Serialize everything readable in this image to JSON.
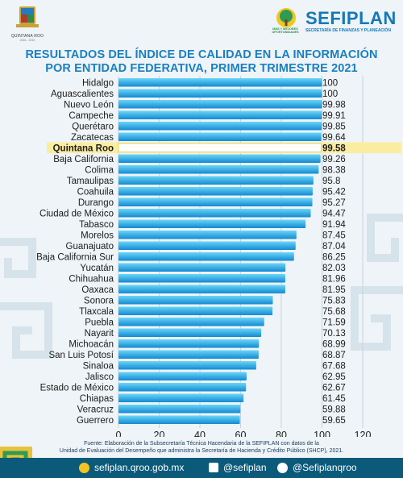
{
  "header": {
    "left_logo_name": "QUINTANA ROO",
    "left_logo_date": "2016 - 2022",
    "right_logo_tagline": "MÁS Y MEJORES OPORTUNIDADES",
    "right_logo_title": "SEFIPLAN",
    "right_logo_subtitle": "SECRETARÍA DE FINANZAS Y PLANEACIÓN"
  },
  "title_line1": "RESULTADOS DEL ÍNDICE DE CALIDAD EN LA INFORMACIÓN",
  "title_line2": "POR ENTIDAD FEDERATIVA, PRIMER TRIMESTRE 2021",
  "source_line1": "Fuente: Elaboración de la Subsecretaría Técnica Hacendaria de la SEFIPLAN con datos de la",
  "source_line2": "Unidad de Evaluación del Desempeño que administra la Secretaría de Hacienda y Crédito Público (SHCP), 2021.",
  "footer": {
    "website": "sefiplan.qroo.gob.mx",
    "facebook": "@sefiplan",
    "twitter": "@Sefiplanqroo"
  },
  "colors": {
    "accent": "#1a7fc1",
    "bar_top": "#5bd0f5",
    "bar_bottom": "#1590d6",
    "highlight_row": "#fbeda0",
    "highlight_bar": "#ffffff",
    "footer_bg": "#0b5a7a",
    "corner_yellow": "#e8c23a",
    "corner_green": "#2e9b55"
  },
  "chart_data": {
    "type": "bar",
    "orientation": "horizontal",
    "highlight": "Quintana Roo",
    "categories": [
      "Hidalgo",
      "Aguascalientes",
      "Nuevo León",
      "Campeche",
      "Querétaro",
      "Zacatecas",
      "Quintana Roo",
      "Baja California",
      "Colima",
      "Tamaulipas",
      "Coahuila",
      "Durango",
      "Ciudad de México",
      "Tabasco",
      "Morelos",
      "Guanajuato",
      "Baja California Sur",
      "Yucatán",
      "Chihuahua",
      "Oaxaca",
      "Sonora",
      "Tlaxcala",
      "Puebla",
      "Nayarit",
      "Michoacán",
      "San Luis Potosí",
      "Sinaloa",
      "Jalisco",
      "Estado de México",
      "Chiapas",
      "Veracruz",
      "Guerrero"
    ],
    "values": [
      100,
      100,
      99.98,
      99.91,
      99.85,
      99.64,
      99.58,
      99.26,
      98.38,
      95.8,
      95.42,
      95.27,
      94.47,
      91.94,
      87.45,
      87.04,
      86.25,
      82.03,
      81.96,
      81.95,
      75.83,
      75.68,
      71.59,
      70.13,
      68.99,
      68.87,
      67.68,
      62.95,
      62.67,
      61.45,
      59.88,
      59.65
    ],
    "value_labels": [
      "100",
      "100",
      "99.98",
      "99.91",
      "99.85",
      "99.64",
      "99.58",
      "99.26",
      "98.38",
      "95.8",
      "95.42",
      "95.27",
      "94.47",
      "91.94",
      "87.45",
      "87.04",
      "86.25",
      "82.03",
      "81.96",
      "81.95",
      "75.83",
      "75.68",
      "71.59",
      "70.13",
      "68.99",
      "68.87",
      "67.68",
      "62.95",
      "62.67",
      "61.45",
      "59.88",
      "59.65"
    ],
    "xlim": [
      0,
      120
    ],
    "xticks": [
      "0",
      "20",
      "40",
      "60",
      "80",
      "100",
      "120"
    ],
    "grid": true
  }
}
